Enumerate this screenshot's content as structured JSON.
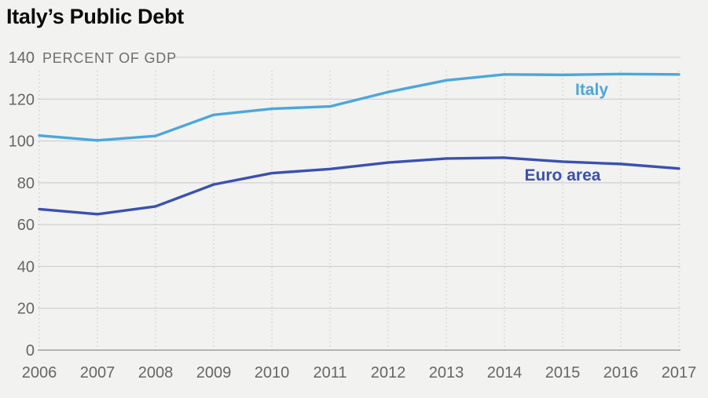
{
  "page": {
    "background_color": "#f2f2f1"
  },
  "chart_data": {
    "type": "line",
    "title": "Italy’s Public Debt",
    "unit_label": "PERCENT OF GDP",
    "xlabel": "",
    "ylabel": "PERCENT OF GDP",
    "x": [
      "2006",
      "2007",
      "2008",
      "2009",
      "2010",
      "2011",
      "2012",
      "2013",
      "2014",
      "2015",
      "2016",
      "2017"
    ],
    "ylim": [
      0,
      140
    ],
    "ytick_step": 20,
    "yticks": [
      0,
      20,
      40,
      60,
      80,
      100,
      120,
      140
    ],
    "grid": {
      "horizontal": "solid",
      "vertical": "dotted"
    },
    "legend_position": "inline-labels",
    "series": [
      {
        "name": "Italy",
        "color": "#4ba7dd",
        "values": [
          102.6,
          100.3,
          102.4,
          112.5,
          115.4,
          116.5,
          123.4,
          129,
          131.8,
          131.6,
          132,
          131.8
        ]
      },
      {
        "name": "Euro area",
        "color": "#3a50b3",
        "values": [
          67.4,
          65,
          68.7,
          79.2,
          84.6,
          86.6,
          89.7,
          91.6,
          92,
          90.1,
          89,
          86.8
        ]
      }
    ],
    "style": {
      "title_color": "#0c0c0c",
      "tick_label_color": "#666666",
      "gridline_color": "#c9c9c9",
      "axis_line_color": "#a0a0a0",
      "dotted_grid_color": "#c5c5c5"
    }
  }
}
